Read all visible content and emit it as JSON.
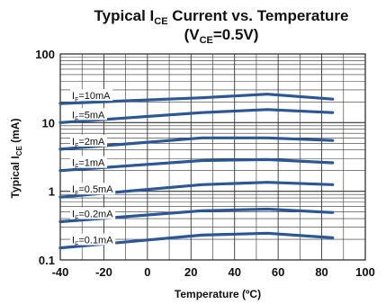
{
  "chart_data": {
    "type": "line",
    "title": {
      "line1": {
        "pre": "Typical I",
        "sub": "CE",
        "post": " Current vs. Temperature"
      },
      "line2": {
        "pre": "(V",
        "sub": "CE",
        "post": "=0.5V)"
      }
    },
    "xlabel": "Temperature (ºC)",
    "ylabel": {
      "pre": "Typical I",
      "sub": "CE",
      "post": " (mA)"
    },
    "xlim": [
      -40,
      100
    ],
    "ylim": [
      0.1,
      100
    ],
    "yscale": "log",
    "grid": true,
    "line_color": "#2b5797",
    "xticks": [
      "-40",
      "-20",
      "0",
      "20",
      "40",
      "60",
      "80",
      "100"
    ],
    "yticks": [
      "0.1",
      "1",
      "10",
      "100"
    ],
    "x": [
      -40,
      25,
      55,
      85
    ],
    "series": [
      {
        "label": {
          "pre": "I",
          "sub": "F",
          "post": "=10mA"
        },
        "values": [
          19,
          23,
          26,
          22
        ]
      },
      {
        "label": {
          "pre": "I",
          "sub": "F",
          "post": "=5mA"
        },
        "values": [
          10,
          14,
          15.5,
          14
        ]
      },
      {
        "label": {
          "pre": "I",
          "sub": "F",
          "post": "=2mA"
        },
        "values": [
          4.1,
          6.0,
          6.0,
          5.5
        ]
      },
      {
        "label": {
          "pre": "I",
          "sub": "F",
          "post": "=1mA"
        },
        "values": [
          2.0,
          2.8,
          2.9,
          2.6
        ]
      },
      {
        "label": {
          "pre": "I",
          "sub": "F",
          "post": "=0.5mA"
        },
        "values": [
          0.82,
          1.25,
          1.35,
          1.25
        ]
      },
      {
        "label": {
          "pre": "I",
          "sub": "F",
          "post": "=0.2mA"
        },
        "values": [
          0.36,
          0.52,
          0.55,
          0.49
        ]
      },
      {
        "label": {
          "pre": "I",
          "sub": "F",
          "post": "=0.1mA"
        },
        "values": [
          0.15,
          0.23,
          0.245,
          0.21
        ]
      }
    ]
  }
}
